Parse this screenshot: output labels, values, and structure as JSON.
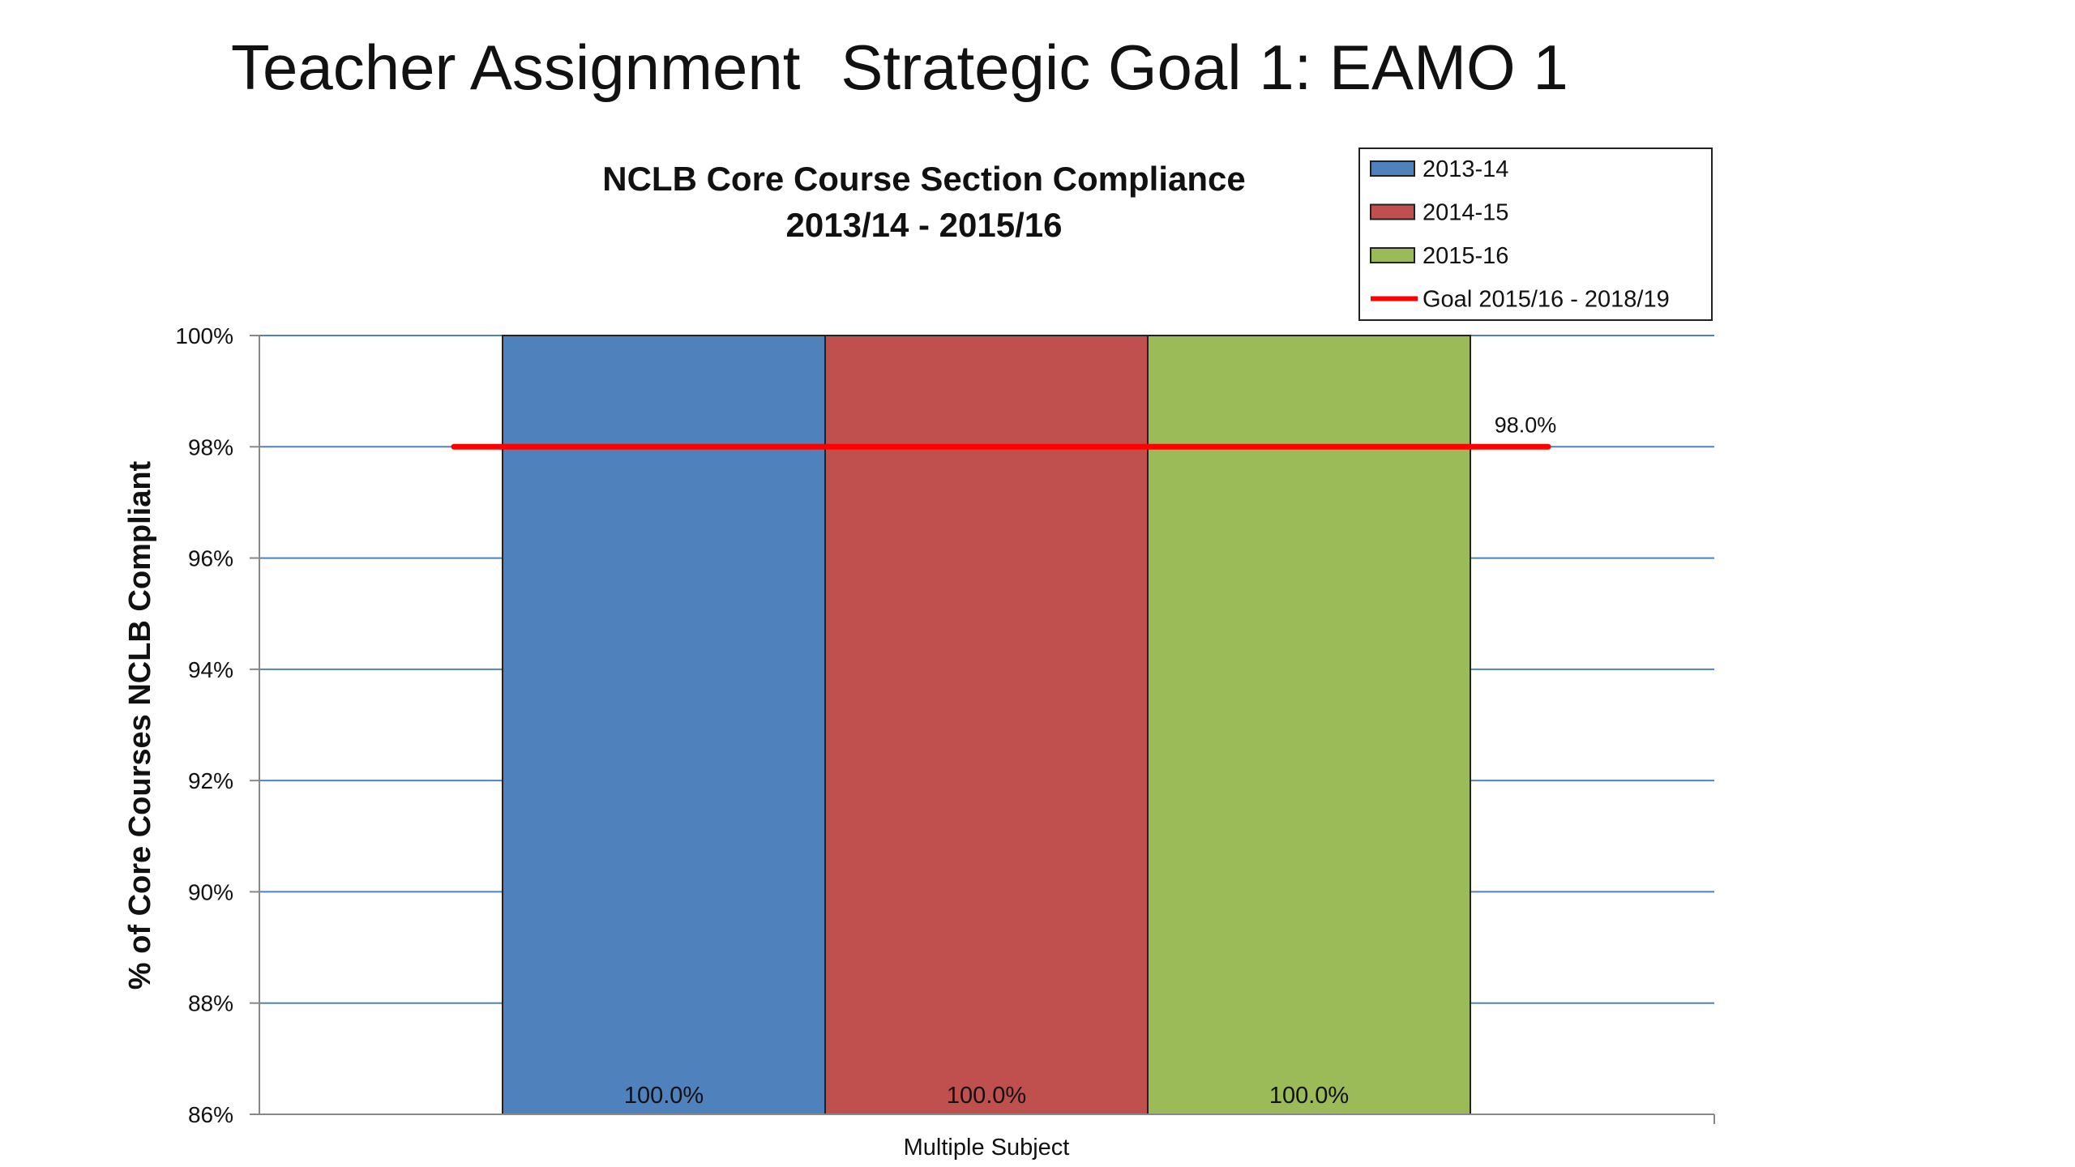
{
  "slide": {
    "title_left": "Teacher Assignment",
    "title_right": "Strategic Goal 1: EAMO 1"
  },
  "chart_data": {
    "type": "bar",
    "title": [
      "NCLB Core Course Section Compliance",
      "2013/14 - 2015/16"
    ],
    "ylabel": "% of Core Courses NCLB Compliant",
    "xlabel": "",
    "categories": [
      "Multiple Subject"
    ],
    "series": [
      {
        "name": "2013-14",
        "values": [
          100.0
        ],
        "color": "#4F81BD",
        "label": "100.0%"
      },
      {
        "name": "2014-15",
        "values": [
          100.0
        ],
        "color": "#C0504D",
        "label": "100.0%"
      },
      {
        "name": "2015-16",
        "values": [
          100.0
        ],
        "color": "#9BBB59",
        "label": "100.0%"
      }
    ],
    "goal_line": {
      "name": "Goal 2015/16 - 2018/19",
      "value": 98.0,
      "label": "98.0%",
      "color": "#FF0000"
    },
    "ylim": [
      86,
      100
    ],
    "yticks": [
      "86%",
      "88%",
      "90%",
      "92%",
      "94%",
      "96%",
      "98%",
      "100%"
    ],
    "ytick_values": [
      86,
      88,
      90,
      92,
      94,
      96,
      98,
      100
    ],
    "grid": true,
    "legend_position": "top-right",
    "gridline_color": "#4F81BD"
  }
}
